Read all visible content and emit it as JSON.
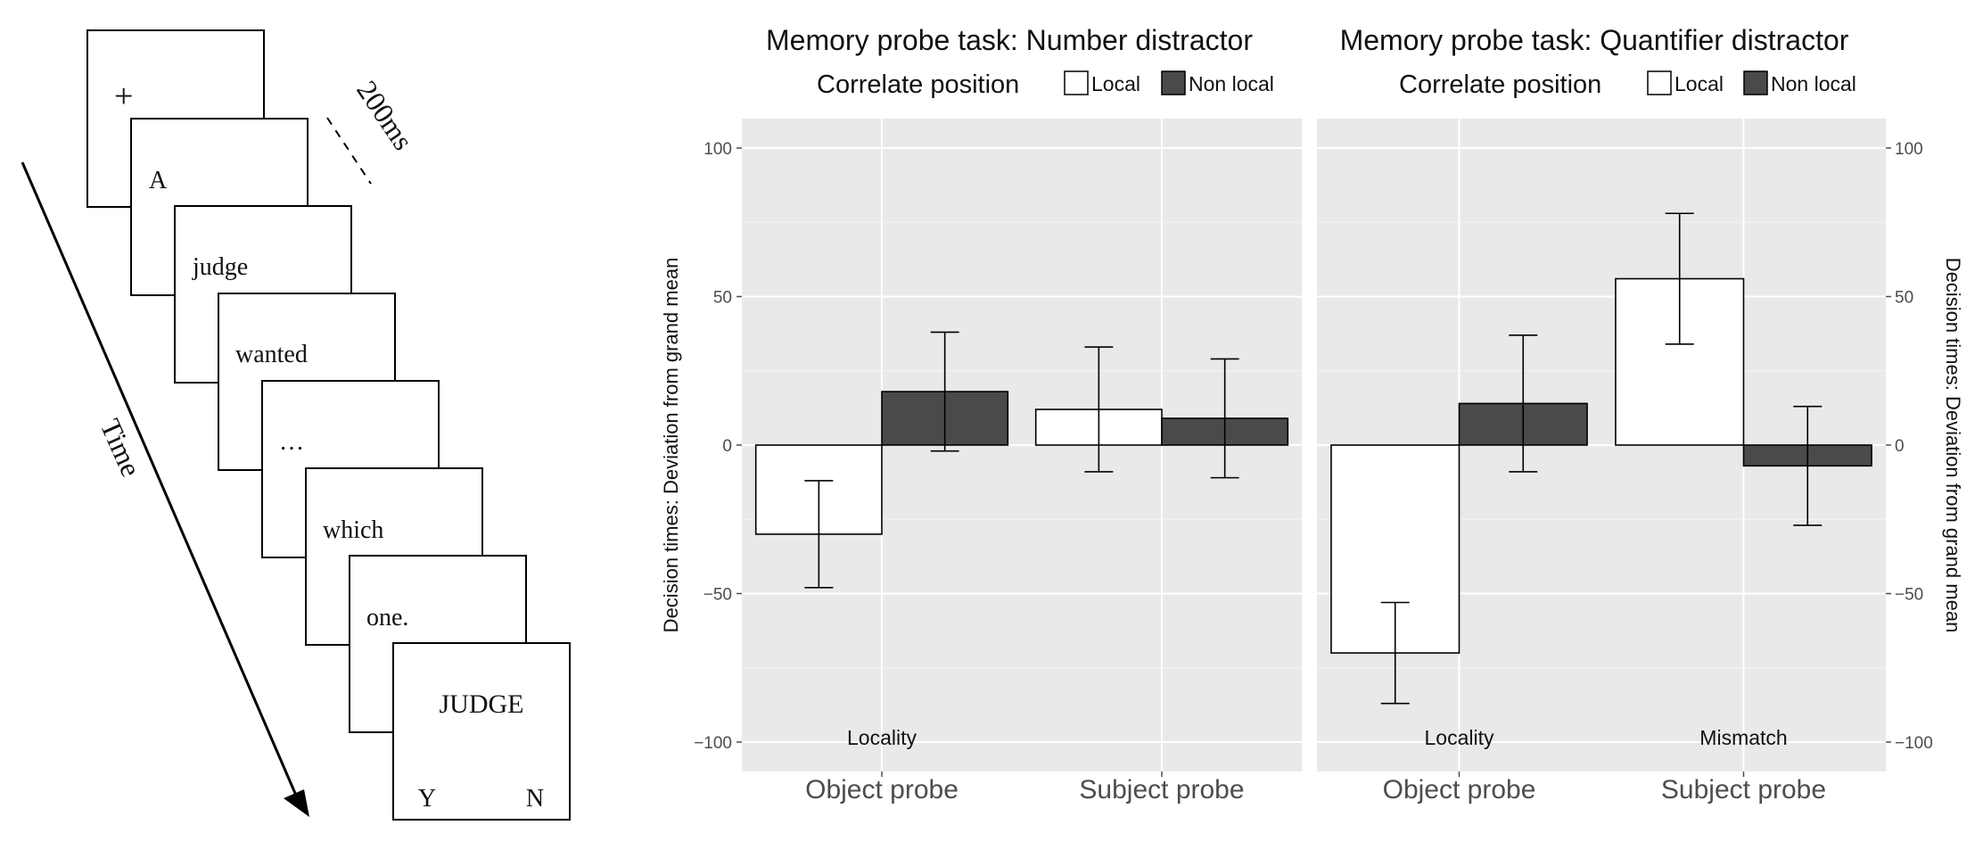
{
  "diagram": {
    "frames": [
      "+",
      "A",
      "judge",
      "wanted",
      "…",
      "which",
      "one.",
      "JUDGE"
    ],
    "response_keys": [
      "Y",
      "N"
    ],
    "duration_label": "200ms",
    "time_label": "Time"
  },
  "colors": {
    "local": "#ffffff",
    "nonlocal": "#4a4a4a",
    "panel_bg": "#e9e9e9",
    "grid": "#ffffff"
  },
  "chart_data": [
    {
      "type": "bar",
      "title": "Memory probe task: Number distractor",
      "legend_title": "Correlate position",
      "legend_position": "top",
      "ylabel": "Decision times: Deviation from grand mean",
      "y_axis_side": "left",
      "ylim": [
        -110,
        100
      ],
      "yticks": [
        100,
        50,
        0,
        -50,
        -100
      ],
      "ytick_labels": [
        "100",
        "50",
        "0",
        "−50",
        "−100"
      ],
      "grid": true,
      "categories": [
        "Object probe",
        "Subject probe"
      ],
      "series": [
        {
          "name": "Local",
          "values": [
            -30,
            12
          ],
          "ci_low": [
            -48,
            -9
          ],
          "ci_high": [
            -12,
            33
          ]
        },
        {
          "name": "Non local",
          "values": [
            18,
            9
          ],
          "ci_low": [
            -2,
            -11
          ],
          "ci_high": [
            38,
            29
          ]
        }
      ],
      "annotations": [
        {
          "category": "Object probe",
          "text": "Locality"
        }
      ]
    },
    {
      "type": "bar",
      "title": "Memory probe task: Quantifier distractor",
      "legend_title": "Correlate position",
      "legend_position": "top",
      "ylabel": "Decision times: Deviation from grand mean",
      "y_axis_side": "right",
      "ylim": [
        -110,
        100
      ],
      "yticks": [
        100,
        50,
        0,
        -50,
        -100
      ],
      "ytick_labels": [
        "100",
        "50",
        "0",
        "−50",
        "−100"
      ],
      "grid": true,
      "categories": [
        "Object probe",
        "Subject probe"
      ],
      "series": [
        {
          "name": "Local",
          "values": [
            -70,
            56
          ],
          "ci_low": [
            -87,
            34
          ],
          "ci_high": [
            -53,
            78
          ]
        },
        {
          "name": "Non local",
          "values": [
            14,
            -7
          ],
          "ci_low": [
            -9,
            -27
          ],
          "ci_high": [
            37,
            13
          ]
        }
      ],
      "annotations": [
        {
          "category": "Object probe",
          "text": "Locality"
        },
        {
          "category": "Subject probe",
          "text": "Mismatch"
        }
      ]
    }
  ]
}
